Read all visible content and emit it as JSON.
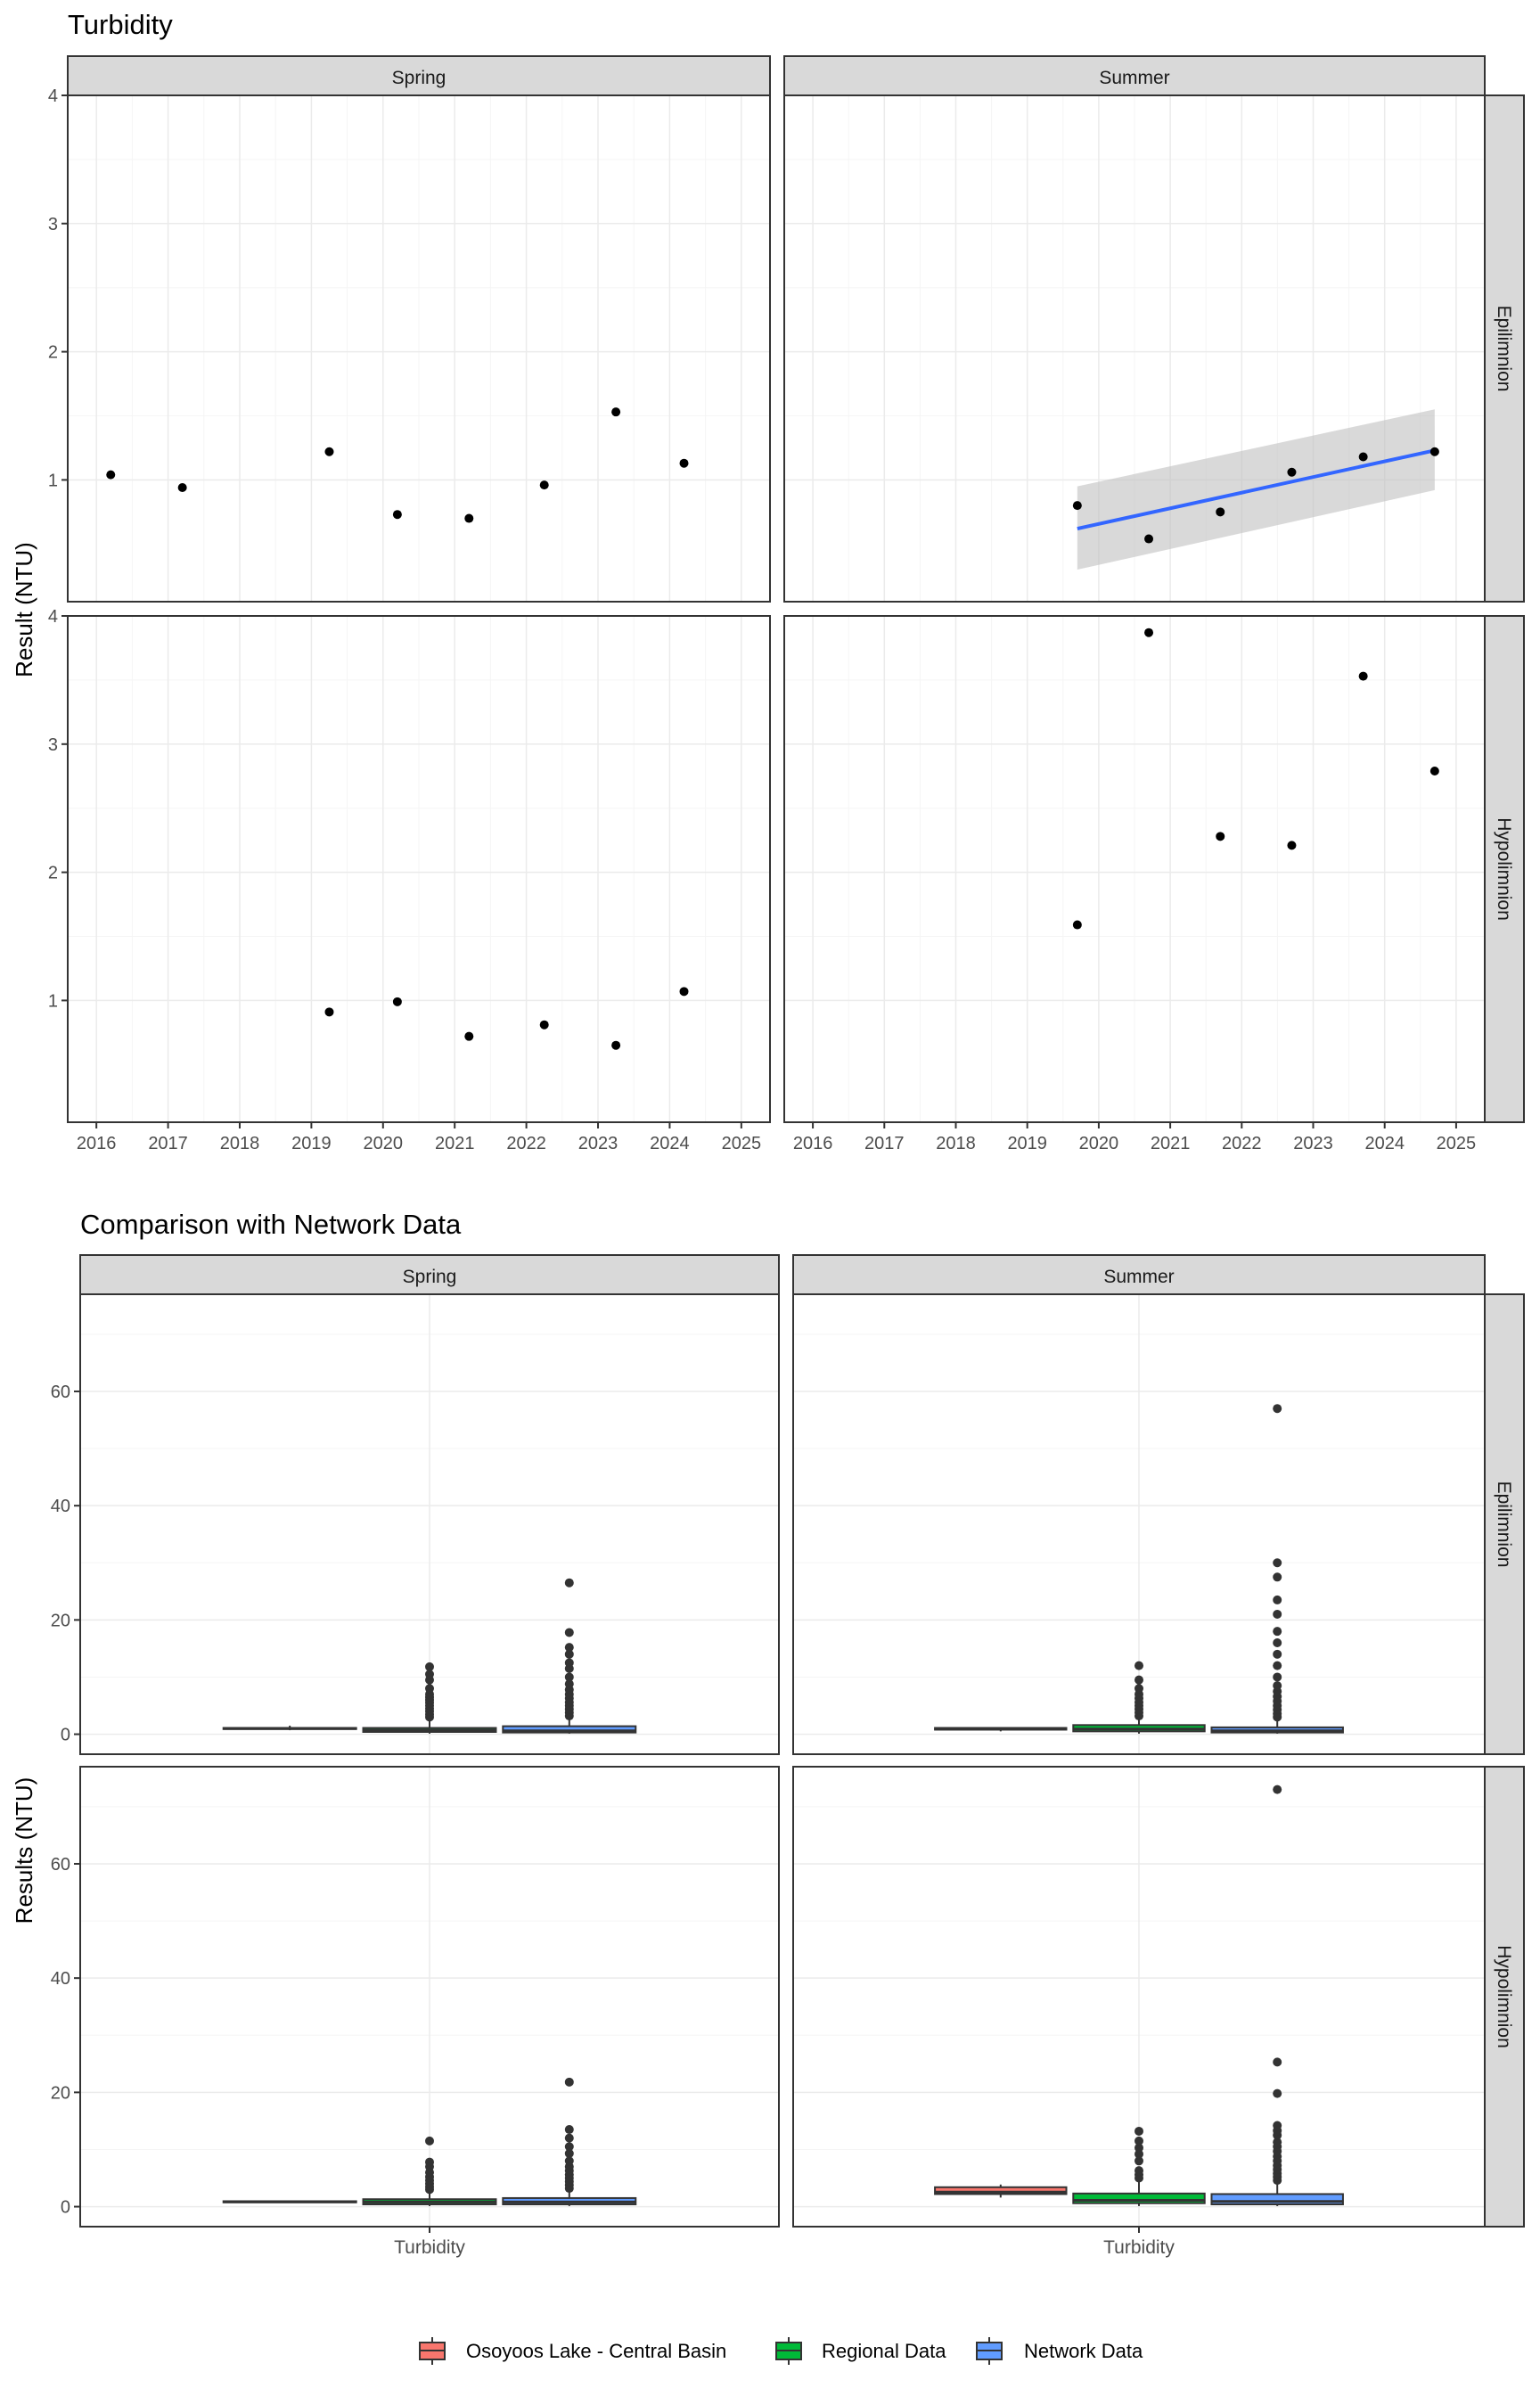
{
  "colors": {
    "panel_bg": "#ffffff",
    "panel_border": "#333333",
    "grid_major": "#ebebeb",
    "grid_minor": "#f5f5f5",
    "strip_bg": "#d9d9d9",
    "point": "#000000",
    "box_point": "#333333",
    "trend_line": "#3366ff",
    "ci_band": "#bfbfbf",
    "osoyoos": "#f8766d",
    "regional": "#00ba38",
    "network": "#619cff"
  },
  "chart_data": [
    {
      "type": "scatter",
      "title": "Turbidity",
      "ylabel": "Result (NTU)",
      "xlabel": "",
      "x_ticks": [
        2016,
        2017,
        2018,
        2019,
        2020,
        2021,
        2022,
        2023,
        2024,
        2025
      ],
      "y_ticks": [
        1,
        2,
        3,
        4
      ],
      "xlim": [
        2015.6,
        2025.4
      ],
      "ylim": [
        0.05,
        4.0
      ],
      "columns": [
        "Spring",
        "Summer"
      ],
      "rows": [
        "Epilimnion",
        "Hypolimnion"
      ],
      "panels": [
        {
          "season": "Spring",
          "layer": "Epilimnion",
          "points": [
            {
              "x": 2016.2,
              "y": 1.04
            },
            {
              "x": 2017.2,
              "y": 0.94
            },
            {
              "x": 2019.25,
              "y": 1.22
            },
            {
              "x": 2020.2,
              "y": 0.73
            },
            {
              "x": 2021.2,
              "y": 0.7
            },
            {
              "x": 2022.25,
              "y": 0.96
            },
            {
              "x": 2023.25,
              "y": 1.53
            },
            {
              "x": 2024.2,
              "y": 1.13
            }
          ]
        },
        {
          "season": "Summer",
          "layer": "Epilimnion",
          "points": [
            {
              "x": 2019.7,
              "y": 0.8
            },
            {
              "x": 2020.7,
              "y": 0.54
            },
            {
              "x": 2021.7,
              "y": 0.75
            },
            {
              "x": 2022.7,
              "y": 1.06
            },
            {
              "x": 2023.7,
              "y": 1.18
            },
            {
              "x": 2024.7,
              "y": 1.22
            }
          ],
          "trend": {
            "x": [
              2019.7,
              2024.7
            ],
            "y": [
              0.62,
              1.23
            ],
            "ci_lower": [
              0.3,
              0.92
            ],
            "ci_upper": [
              0.95,
              1.55
            ]
          }
        },
        {
          "season": "Spring",
          "layer": "Hypolimnion",
          "points": [
            {
              "x": 2019.25,
              "y": 0.91
            },
            {
              "x": 2020.2,
              "y": 0.99
            },
            {
              "x": 2021.2,
              "y": 0.72
            },
            {
              "x": 2022.25,
              "y": 0.81
            },
            {
              "x": 2023.25,
              "y": 0.65
            },
            {
              "x": 2024.2,
              "y": 1.07
            }
          ]
        },
        {
          "season": "Summer",
          "layer": "Hypolimnion",
          "points": [
            {
              "x": 2019.7,
              "y": 1.59
            },
            {
              "x": 2020.7,
              "y": 3.87
            },
            {
              "x": 2021.7,
              "y": 2.28
            },
            {
              "x": 2022.7,
              "y": 2.21
            },
            {
              "x": 2023.7,
              "y": 3.53
            },
            {
              "x": 2024.7,
              "y": 2.79
            }
          ]
        }
      ]
    },
    {
      "type": "box",
      "title": "Comparison with Network Data",
      "ylabel": "Results (NTU)",
      "x_category": "Turbidity",
      "y_ticks": [
        0,
        20,
        40,
        60
      ],
      "ylim": [
        -3.5,
        77
      ],
      "columns": [
        "Spring",
        "Summer"
      ],
      "rows": [
        "Epilimnion",
        "Hypolimnion"
      ],
      "groups": [
        "Osoyoos Lake - Central Basin",
        "Regional Data",
        "Network Data"
      ],
      "legend_position": "bottom",
      "panels": [
        {
          "season": "Spring",
          "layer": "Epilimnion",
          "boxes": [
            {
              "group": "Osoyoos Lake - Central Basin",
              "min": 0.7,
              "q1": 0.9,
              "median": 1.0,
              "q3": 1.1,
              "max": 1.5,
              "outliers": []
            },
            {
              "group": "Regional Data",
              "min": 0.1,
              "q1": 0.4,
              "median": 0.7,
              "q3": 1.1,
              "max": 2.5,
              "outliers": [
                3.0,
                3.5,
                4.0,
                4.5,
                5.0,
                5.5,
                6.0,
                6.5,
                7.0,
                8.0,
                9.5,
                10.5,
                11.8
              ]
            },
            {
              "group": "Network Data",
              "min": 0.1,
              "q1": 0.3,
              "median": 0.6,
              "q3": 1.4,
              "max": 2.9,
              "outliers": [
                3.2,
                3.8,
                4.4,
                5.0,
                5.6,
                6.3,
                7.0,
                7.8,
                8.8,
                10.0,
                11.5,
                12.5,
                14.0,
                15.2,
                17.8,
                26.5
              ]
            }
          ]
        },
        {
          "season": "Summer",
          "layer": "Epilimnion",
          "boxes": [
            {
              "group": "Osoyoos Lake - Central Basin",
              "min": 0.5,
              "q1": 0.8,
              "median": 0.9,
              "q3": 1.1,
              "max": 1.2,
              "outliers": []
            },
            {
              "group": "Regional Data",
              "min": 0.1,
              "q1": 0.5,
              "median": 0.9,
              "q3": 1.6,
              "max": 2.8,
              "outliers": [
                3.2,
                3.8,
                4.4,
                5.0,
                5.6,
                6.3,
                7.0,
                8.0,
                9.5,
                12.0
              ]
            },
            {
              "group": "Network Data",
              "min": 0.1,
              "q1": 0.3,
              "median": 0.6,
              "q3": 1.2,
              "max": 2.6,
              "outliers": [
                3.0,
                3.6,
                4.3,
                5.0,
                5.8,
                6.6,
                7.5,
                8.5,
                10.0,
                12.0,
                14.0,
                16.0,
                18.0,
                21.0,
                23.5,
                27.5,
                30.0,
                57.0
              ]
            }
          ]
        },
        {
          "season": "Spring",
          "layer": "Hypolimnion",
          "boxes": [
            {
              "group": "Osoyoos Lake - Central Basin",
              "min": 0.65,
              "q1": 0.75,
              "median": 0.85,
              "q3": 0.95,
              "max": 1.07,
              "outliers": []
            },
            {
              "group": "Regional Data",
              "min": 0.1,
              "q1": 0.4,
              "median": 0.8,
              "q3": 1.3,
              "max": 2.6,
              "outliers": [
                3.0,
                3.5,
                4.0,
                4.6,
                5.2,
                6.0,
                7.0,
                7.8,
                11.5
              ]
            },
            {
              "group": "Network Data",
              "min": 0.1,
              "q1": 0.4,
              "median": 0.8,
              "q3": 1.5,
              "max": 2.9,
              "outliers": [
                3.2,
                3.8,
                4.4,
                5.0,
                5.6,
                6.3,
                7.0,
                8.0,
                9.3,
                10.5,
                12.0,
                13.5,
                21.8
              ]
            }
          ]
        },
        {
          "season": "Summer",
          "layer": "Hypolimnion",
          "boxes": [
            {
              "group": "Osoyoos Lake - Central Basin",
              "min": 1.59,
              "q1": 2.2,
              "median": 2.55,
              "q3": 3.4,
              "max": 3.87,
              "outliers": []
            },
            {
              "group": "Regional Data",
              "min": 0.1,
              "q1": 0.6,
              "median": 1.1,
              "q3": 2.3,
              "max": 4.3,
              "outliers": [
                5.0,
                5.6,
                6.3,
                8.0,
                9.2,
                10.3,
                11.5,
                13.2
              ]
            },
            {
              "group": "Network Data",
              "min": 0.1,
              "q1": 0.4,
              "median": 0.9,
              "q3": 2.2,
              "max": 4.1,
              "outliers": [
                4.6,
                5.2,
                5.8,
                6.5,
                7.2,
                8.0,
                8.8,
                9.7,
                10.5,
                11.3,
                12.5,
                13.3,
                14.2,
                19.8,
                25.3,
                73.0
              ]
            }
          ]
        }
      ]
    }
  ]
}
